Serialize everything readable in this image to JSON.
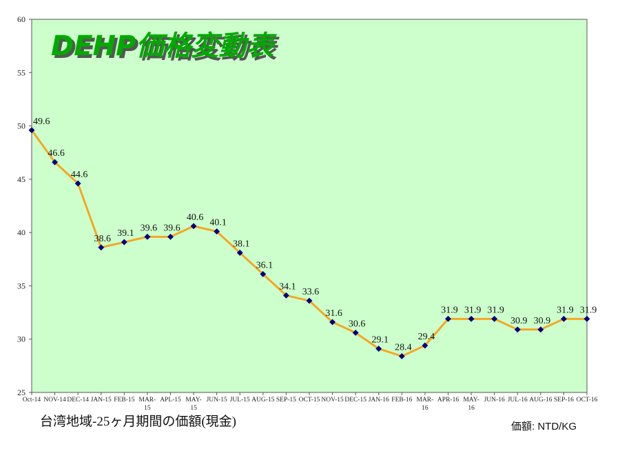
{
  "chart_data": {
    "type": "line",
    "title": "DEHP価格変動表",
    "categories": [
      "Oct-14",
      "NOV-14",
      "DEC-14",
      "JAN-15",
      "FEB-15",
      "MAR-15",
      "APL-15",
      "MAY-15",
      "JUN-15",
      "JUL-15",
      "AUG-15",
      "SEP-15",
      "OCT-15",
      "NOV-15",
      "DEC-15",
      "JAN-16",
      "FEB-16",
      "MAR-16",
      "APR-16",
      "MAY-16",
      "JUN-16",
      "JUL-16",
      "AUG-16",
      "SEP-16",
      "OCT-16"
    ],
    "series": [
      {
        "values": [
          49.6,
          46.6,
          44.6,
          38.6,
          39.1,
          39.6,
          39.6,
          40.6,
          40.1,
          38.1,
          36.1,
          34.1,
          33.6,
          31.6,
          30.6,
          29.1,
          28.4,
          29.4,
          31.9,
          31.9,
          31.9,
          30.9,
          30.9,
          31.9,
          31.9
        ]
      }
    ],
    "ylim": [
      25,
      60
    ],
    "yticks": [
      25,
      30,
      35,
      40,
      45,
      50,
      55,
      60
    ],
    "grid": false,
    "legend": "none",
    "colors": {
      "plot_bg": "#ccffcc",
      "line": "#f5a623",
      "marker": "#000080",
      "title": "#00aa00",
      "title_shadow": "#555555"
    }
  },
  "footer": {
    "left": "台湾地域-25ヶ月期間の価額(現金)",
    "right": "価額: NTD/KG"
  }
}
